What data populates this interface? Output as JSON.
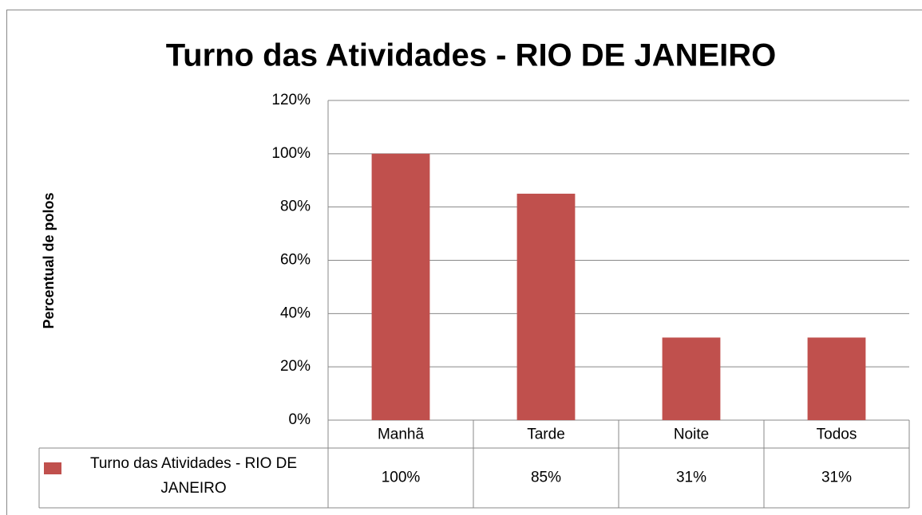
{
  "chart_data": {
    "type": "bar",
    "title": "Turno das Atividades - RIO DE JANEIRO",
    "y_label": "Percentual de polos",
    "categories": [
      "Manhã",
      "Tarde",
      "Noite",
      "Todos"
    ],
    "series": [
      {
        "name": "Turno das Atividades - RIO DE JANEIRO",
        "color": "#c0504d",
        "values": [
          100,
          85,
          31,
          31
        ],
        "value_labels": [
          "100%",
          "85%",
          "31%",
          "31%"
        ]
      }
    ],
    "ylim": [
      0,
      120
    ],
    "yticks": [
      {
        "value": 0,
        "label": "0%"
      },
      {
        "value": 20,
        "label": "20%"
      },
      {
        "value": 40,
        "label": "40%"
      },
      {
        "value": 60,
        "label": "60%"
      },
      {
        "value": 80,
        "label": "80%"
      },
      {
        "value": 100,
        "label": "100%"
      },
      {
        "value": 120,
        "label": "120%"
      }
    ],
    "grid": true,
    "data_table": true
  }
}
